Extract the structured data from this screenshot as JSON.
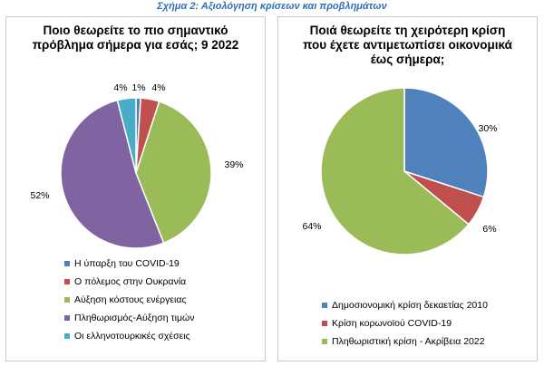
{
  "figure_title": "Σχήμα 2: Αξιολόγηση κρίσεων και προβλημάτων",
  "colors": {
    "title": "#2f6fb3",
    "blue_teal": "#4aacc6",
    "blue": "#4f81bd",
    "red": "#c0504d",
    "green": "#9bbb59",
    "purple": "#8064a2"
  },
  "chart_data": [
    {
      "type": "pie",
      "title": "Ποιο θεωρείτε το πιο σημαντικό πρόβλημα σήμερα για εσάς; 9 2022",
      "title_lines": [
        "Ποιο θεωρείτε το πιο σημαντικό",
        "πρόβλημα σήμερα για εσάς; 9 2022"
      ],
      "legend_position": "bottom",
      "slices": [
        {
          "label": "Η ύπαρξη του COVID-19",
          "value": 1,
          "display": "1%",
          "color": "#4f81bd"
        },
        {
          "label": "Ο πόλεμος στην Ουκρανία",
          "value": 4,
          "display": "4%",
          "color": "#c0504d"
        },
        {
          "label": "Αύξηση κόστους ενέργειας",
          "value": 39,
          "display": "39%",
          "color": "#9bbb59"
        },
        {
          "label": "Πληθωρισμός-Αύξηση τιμών",
          "value": 52,
          "display": "52%",
          "color": "#8064a2"
        },
        {
          "label": "Οι ελληνοτουρκικές σχέσεις",
          "value": 4,
          "display": "4%",
          "color": "#4aacc6"
        }
      ]
    },
    {
      "type": "pie",
      "title": "Ποιά θεωρείτε τη χειρότερη κρίση που έχετε αντιμετωπίσει οικονομικά έως σήμερα;",
      "title_lines": [
        "Ποιά θεωρείτε τη χειρότερη κρίση",
        "που έχετε αντιμετωπίσει οικονομικά",
        "έως σήμερα;"
      ],
      "legend_position": "bottom",
      "slices": [
        {
          "label": "Δημοσιονομική κρίση δεκαετίας 2010",
          "value": 30,
          "display": "30%",
          "color": "#4f81bd"
        },
        {
          "label": "Κρίση κορωνοϊού COVID-19",
          "value": 6,
          "display": "6%",
          "color": "#c0504d"
        },
        {
          "label": "Πληθωριστική κρίση - Ακρίβεια 2022",
          "value": 64,
          "display": "64%",
          "color": "#9bbb59"
        }
      ]
    }
  ]
}
